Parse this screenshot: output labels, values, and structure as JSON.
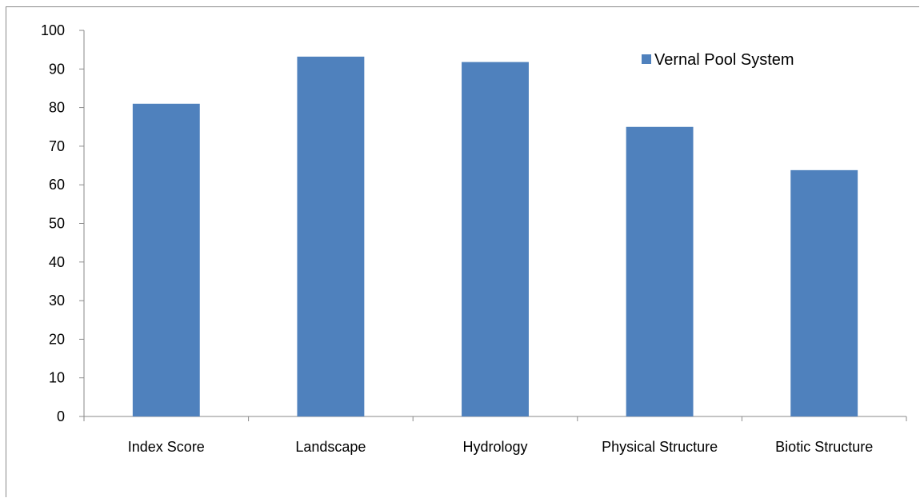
{
  "chart_data": {
    "type": "bar",
    "categories": [
      "Index Score",
      "Landscape",
      "Hydrology",
      "Physical Structure",
      "Biotic Structure"
    ],
    "series": [
      {
        "name": "Vernal Pool System",
        "color": "#4f81bd",
        "values": [
          81,
          93.2,
          91.8,
          75,
          63.8
        ]
      }
    ],
    "ylim": [
      0,
      100
    ],
    "yticks": [
      0,
      10,
      20,
      30,
      40,
      50,
      60,
      70,
      80,
      90,
      100
    ],
    "ytick_labels": [
      "0",
      "10",
      "20",
      "30",
      "40",
      "50",
      "60",
      "70",
      "80",
      "90",
      "100"
    ],
    "legend": {
      "position": "top-right",
      "label": "Vernal Pool System"
    },
    "grid": false
  }
}
